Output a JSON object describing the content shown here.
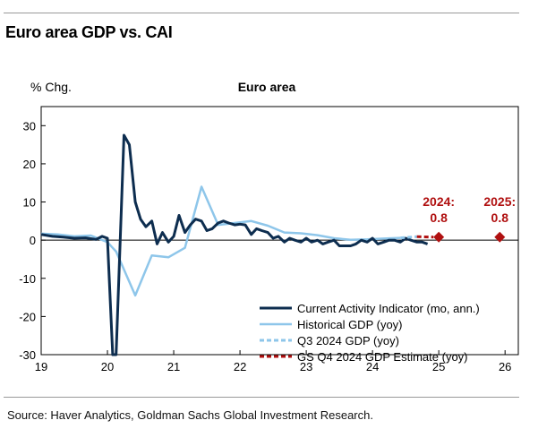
{
  "header": {
    "title": "Euro area GDP vs. CAI"
  },
  "source": "Source: Haver Analytics, Goldman Sachs Global Investment Research.",
  "chart_data": {
    "type": "line",
    "title": "Euro area",
    "ylabel": "% Chg.",
    "xlabel": "",
    "ylim": [
      -30,
      35
    ],
    "xlim": [
      2019,
      2026.2
    ],
    "y_ticks": [
      30,
      20,
      10,
      0,
      -10,
      -20,
      -30
    ],
    "x_ticks": [
      {
        "value": 2019,
        "label": "19"
      },
      {
        "value": 2020,
        "label": "20"
      },
      {
        "value": 2021,
        "label": "21"
      },
      {
        "value": 2022,
        "label": "22"
      },
      {
        "value": 2023,
        "label": "23"
      },
      {
        "value": 2024,
        "label": "24"
      },
      {
        "value": 2025,
        "label": "25"
      },
      {
        "value": 2026,
        "label": "26"
      }
    ],
    "grid": false,
    "legend_position": "bottom-right",
    "series": [
      {
        "name": "Current Activity Indicator (mo, ann.)",
        "color": "#0d2d4f",
        "style": "solid-thick",
        "x": [
          2019.0,
          2019.17,
          2019.33,
          2019.5,
          2019.67,
          2019.83,
          2019.92,
          2020.0,
          2020.08,
          2020.13,
          2020.25,
          2020.33,
          2020.42,
          2020.5,
          2020.58,
          2020.67,
          2020.75,
          2020.83,
          2020.92,
          2021.0,
          2021.08,
          2021.17,
          2021.25,
          2021.33,
          2021.42,
          2021.5,
          2021.58,
          2021.67,
          2021.75,
          2021.83,
          2021.92,
          2022.0,
          2022.08,
          2022.17,
          2022.25,
          2022.33,
          2022.42,
          2022.5,
          2022.58,
          2022.67,
          2022.75,
          2022.83,
          2022.92,
          2023.0,
          2023.08,
          2023.17,
          2023.25,
          2023.33,
          2023.42,
          2023.5,
          2023.58,
          2023.67,
          2023.75,
          2023.83,
          2023.92,
          2024.0,
          2024.08,
          2024.17,
          2024.25,
          2024.33,
          2024.42,
          2024.5,
          2024.58,
          2024.67,
          2024.75,
          2024.83
        ],
        "y": [
          1.5,
          1.0,
          0.8,
          0.5,
          0.6,
          0.2,
          1.0,
          0.5,
          -30,
          -30,
          27.5,
          25.0,
          10.0,
          5.5,
          3.5,
          5.0,
          -1.0,
          2.0,
          -0.5,
          1.0,
          6.5,
          2.0,
          4.0,
          5.5,
          5.0,
          2.5,
          3.0,
          4.5,
          5.0,
          4.5,
          4.0,
          4.2,
          4.0,
          1.5,
          3.0,
          2.5,
          2.0,
          0.5,
          1.0,
          -0.5,
          0.5,
          0.0,
          -0.5,
          0.5,
          -0.5,
          0.0,
          -1.0,
          -0.5,
          0.0,
          -1.5,
          -1.5,
          -1.5,
          -1.0,
          0.0,
          -0.5,
          0.5,
          -1.0,
          -0.5,
          0.0,
          0.0,
          -0.5,
          0.5,
          0.0,
          -0.5,
          -0.5,
          -1.0
        ]
      },
      {
        "name": "Historical GDP (yoy)",
        "color": "#8ec6ea",
        "style": "solid",
        "x": [
          2019.0,
          2019.25,
          2019.5,
          2019.75,
          2020.0,
          2020.13,
          2020.42,
          2020.67,
          2020.92,
          2021.17,
          2021.42,
          2021.67,
          2021.92,
          2022.17,
          2022.42,
          2022.67,
          2022.92,
          2023.17,
          2023.42,
          2023.67,
          2023.92,
          2024.17,
          2024.42
        ],
        "y": [
          1.7,
          1.5,
          1.0,
          1.2,
          -0.5,
          -3.0,
          -14.5,
          -4.0,
          -4.5,
          -2.0,
          14.0,
          4.0,
          4.5,
          5.0,
          3.8,
          2.0,
          1.8,
          1.3,
          0.5,
          0.1,
          0.2,
          0.4,
          0.6
        ]
      },
      {
        "name": "Q3 2024 GDP (yoy)",
        "color": "#8ec6ea",
        "style": "dashed",
        "x": [
          2024.42,
          2024.67
        ],
        "y": [
          0.6,
          0.9
        ]
      },
      {
        "name": "GS Q4 2024 GDP Estimate (yoy)",
        "color": "#b01010",
        "style": "dashed",
        "x": [
          2024.67,
          2024.92
        ],
        "y": [
          0.9,
          0.8
        ]
      }
    ],
    "annotations": [
      {
        "year_label": "2024:",
        "value_label": "0.8",
        "x": 2025.0,
        "y": 0.8,
        "color": "#b01010"
      },
      {
        "year_label": "2025:",
        "value_label": "0.8",
        "x": 2025.92,
        "y": 0.8,
        "color": "#b01010"
      }
    ]
  }
}
